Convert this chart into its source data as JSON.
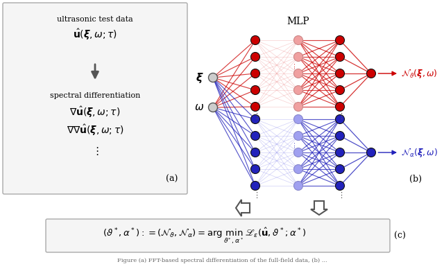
{
  "bg_color": "#ffffff",
  "red_color": "#cc0000",
  "blue_color": "#2222bb",
  "red_light": "#f0a0a0",
  "blue_light": "#a0a0f0",
  "gray_node": "#c8c8c8",
  "label_a": "(a)",
  "label_b": "(b)",
  "label_c": "(c)"
}
